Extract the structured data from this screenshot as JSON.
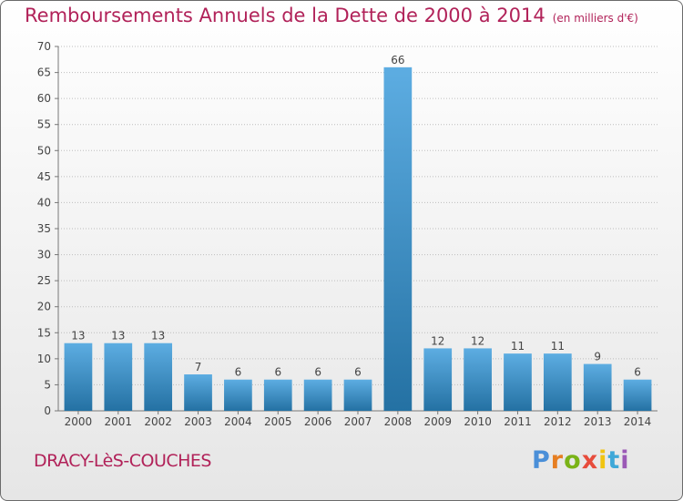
{
  "header": {
    "title": "Remboursements Annuels de la Dette de 2000 à 2014",
    "unit": "(en milliers d'€)"
  },
  "footer": {
    "commune": "DRACY-LèS-COUCHES",
    "brand_letters": [
      {
        "char": "P",
        "color": "#4a8fd8"
      },
      {
        "char": "r",
        "color": "#e67e22"
      },
      {
        "char": "o",
        "color": "#7ab317"
      },
      {
        "char": "x",
        "color": "#e74c3c"
      },
      {
        "char": "i",
        "color": "#f1c40f"
      },
      {
        "char": "t",
        "color": "#3fa8d8"
      },
      {
        "char": "i",
        "color": "#9b59b6"
      }
    ]
  },
  "colors": {
    "bar_light": "#5dade2",
    "bar_dark": "#2471a3",
    "title": "#b12259"
  },
  "chart_data": {
    "type": "bar",
    "title": "Remboursements Annuels de la Dette de 2000 à 2014",
    "subtitle": "(en milliers d'€)",
    "categories": [
      "2000",
      "2001",
      "2002",
      "2003",
      "2004",
      "2005",
      "2006",
      "2007",
      "2008",
      "2009",
      "2010",
      "2011",
      "2012",
      "2013",
      "2014"
    ],
    "values": [
      13,
      13,
      13,
      7,
      6,
      6,
      6,
      6,
      66,
      12,
      12,
      11,
      11,
      9,
      6
    ],
    "ylim": [
      0,
      70
    ],
    "yticks": [
      0,
      5,
      10,
      15,
      20,
      25,
      30,
      35,
      40,
      45,
      50,
      55,
      60,
      65,
      70
    ],
    "grid": "horizontal dotted",
    "data_labels": true
  }
}
